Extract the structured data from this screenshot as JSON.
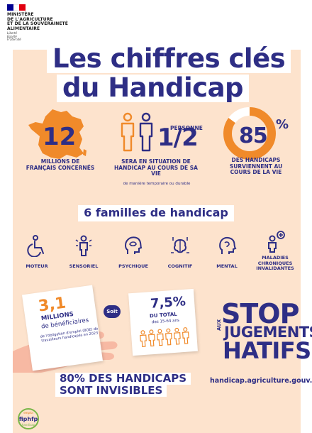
{
  "header": {
    "ministry_lines": [
      "MINISTÈRE",
      "DE L'AGRICULTURE",
      "ET DE LA SOUVERAINETÉ",
      "ALIMENTAIRE"
    ],
    "motto_lines": [
      "Liberté",
      "Égalité",
      "Fraternité"
    ]
  },
  "title": {
    "line1": "Les chiffres clés",
    "line2": "du Handicap"
  },
  "stats": [
    {
      "value": "12",
      "label": "MILLIONS DE FRANÇAIS CONCERNÉS"
    },
    {
      "value": "1/2",
      "unit": "PERSONNE",
      "label": "SERA EN SITUATION DE HANDICAP AU COURS DE SA VIE",
      "note": "de manière temporaire ou durable"
    },
    {
      "value": "85",
      "unit": "%",
      "label": "DES HANDICAPS SURVIENNENT AU COURS DE LA VIE"
    }
  ],
  "families": {
    "heading": "6 familles de handicap",
    "items": [
      {
        "label": "MOTEUR",
        "icon": "wheelchair-icon"
      },
      {
        "label": "SENSORIEL",
        "icon": "sensory-person-icon"
      },
      {
        "label": "PSYCHIQUE",
        "icon": "psychic-head-icon"
      },
      {
        "label": "COGNITIF",
        "icon": "cognitive-brain-icon"
      },
      {
        "label": "MENTAL",
        "icon": "mental-head-icon"
      },
      {
        "label": "MALADIES CHRONIQUES INVALIDANTES",
        "icon": "chronic-disease-icon"
      }
    ]
  },
  "card": {
    "value": "3,1",
    "line1": "MILLIONS",
    "line2": "de bénéficiaires",
    "sub": "de l'obligation d'emploi (BOE) de travailleurs handicapés en 2023"
  },
  "soit": "Soit",
  "note": {
    "value": "7,5%",
    "line1": "DU TOTAL",
    "line2": "des 15-64 ans"
  },
  "stop": {
    "line1": "STOP",
    "aux": "AUX",
    "line2": "JUGEMENTS",
    "line3": "HATIFS"
  },
  "invisible": {
    "line1": "80% DES HANDICAPS",
    "line2": "SONT INVISIBLES"
  },
  "url": "handicap.agriculture.gouv.fr",
  "footer_logo": {
    "top": "emploi",
    "main": "fiphfp",
    "bottom": "handicap"
  },
  "colors": {
    "navy": "#2e2e85",
    "orange": "#f08a2a",
    "beige": "#fde3cd",
    "red_fr": "#e1000f",
    "blue_fr": "#000091"
  }
}
